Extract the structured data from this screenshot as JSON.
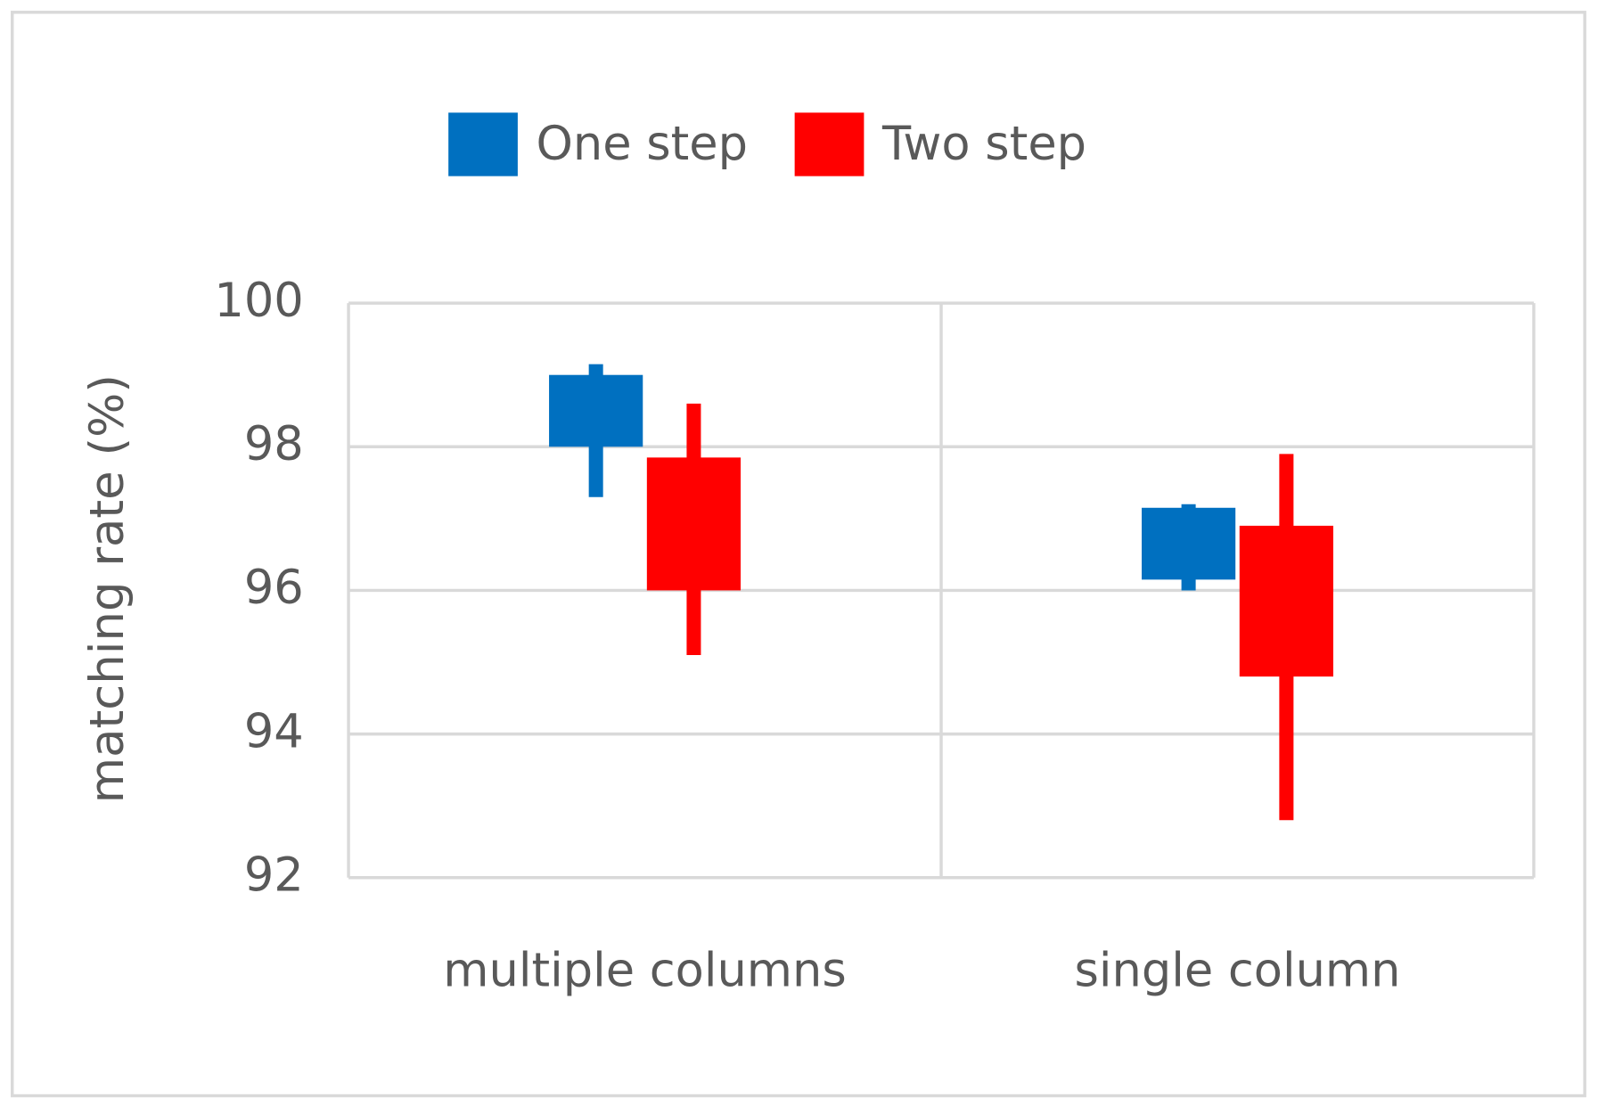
{
  "chart_data": {
    "type": "box",
    "y_label": "matching rate (%)",
    "categories": [
      "multiple columns",
      "single column"
    ],
    "series": [
      {
        "name": "One step",
        "color": "#0070c0",
        "low": [
          97.3,
          96.0
        ],
        "box_low": [
          98.0,
          96.15
        ],
        "box_high": [
          99.0,
          97.15
        ],
        "high": [
          99.15,
          97.2
        ]
      },
      {
        "name": "Two step",
        "color": "#ff0000",
        "low": [
          95.1,
          92.8
        ],
        "box_low": [
          96.0,
          94.8
        ],
        "box_high": [
          97.85,
          96.9
        ],
        "high": [
          98.6,
          97.9
        ]
      }
    ],
    "ylim": [
      92,
      100
    ],
    "yticks": [
      92,
      94,
      96,
      98,
      100
    ],
    "grid": true,
    "legend": "top"
  }
}
